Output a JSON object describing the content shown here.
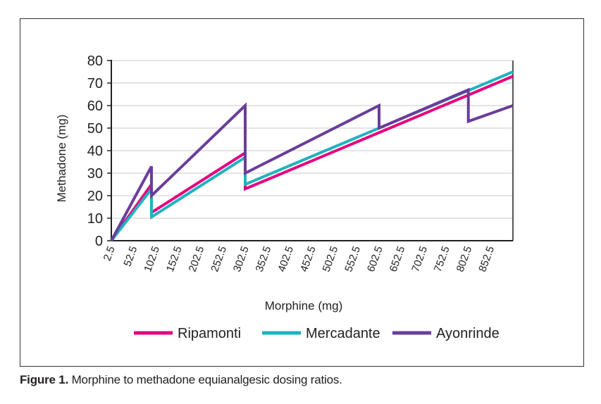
{
  "caption": {
    "label": "Figure 1.",
    "text": " Morphine to methadone equianalgesic dosing ratios."
  },
  "colors": {
    "Ripamonti": "#e6007e",
    "Mercadante": "#1fb3bf",
    "Ayonrinde": "#6a3d9a",
    "grid": "#c8c8c8",
    "axis": "#231f20"
  },
  "chart_data": {
    "type": "line",
    "xlabel": "Morphine (mg)",
    "ylabel": "Methadone (mg)",
    "xlim": [
      2.5,
      902.5
    ],
    "ylim": [
      0,
      80
    ],
    "x_ticks": [
      "2.5",
      "52.5",
      "102.5",
      "152.5",
      "202.5",
      "252.5",
      "302.5",
      "352.5",
      "402.5",
      "452.5",
      "502.5",
      "552.5",
      "602.5",
      "652.5",
      "702.5",
      "752.5",
      "802.5",
      "852.5"
    ],
    "y_ticks": [
      0,
      10,
      20,
      30,
      40,
      50,
      60,
      70,
      80
    ],
    "grid": "horizontal",
    "legend_position": "bottom",
    "series": [
      {
        "name": "Ripamonti",
        "points": [
          [
            2.5,
            0
          ],
          [
            92.5,
            25
          ],
          [
            92.5,
            12.5
          ],
          [
            302.5,
            39
          ],
          [
            302.5,
            23
          ],
          [
            902.5,
            73
          ]
        ]
      },
      {
        "name": "Mercadante",
        "points": [
          [
            2.5,
            0
          ],
          [
            92.5,
            23
          ],
          [
            92.5,
            10.5
          ],
          [
            302.5,
            37
          ],
          [
            302.5,
            25
          ],
          [
            902.5,
            75
          ]
        ]
      },
      {
        "name": "Ayonrinde",
        "points": [
          [
            2.5,
            0
          ],
          [
            92.5,
            33
          ],
          [
            92.5,
            20
          ],
          [
            302.5,
            60
          ],
          [
            302.5,
            30
          ],
          [
            602.5,
            60
          ],
          [
            602.5,
            50
          ],
          [
            802.5,
            67
          ],
          [
            802.5,
            53
          ],
          [
            902.5,
            60
          ]
        ]
      }
    ]
  }
}
